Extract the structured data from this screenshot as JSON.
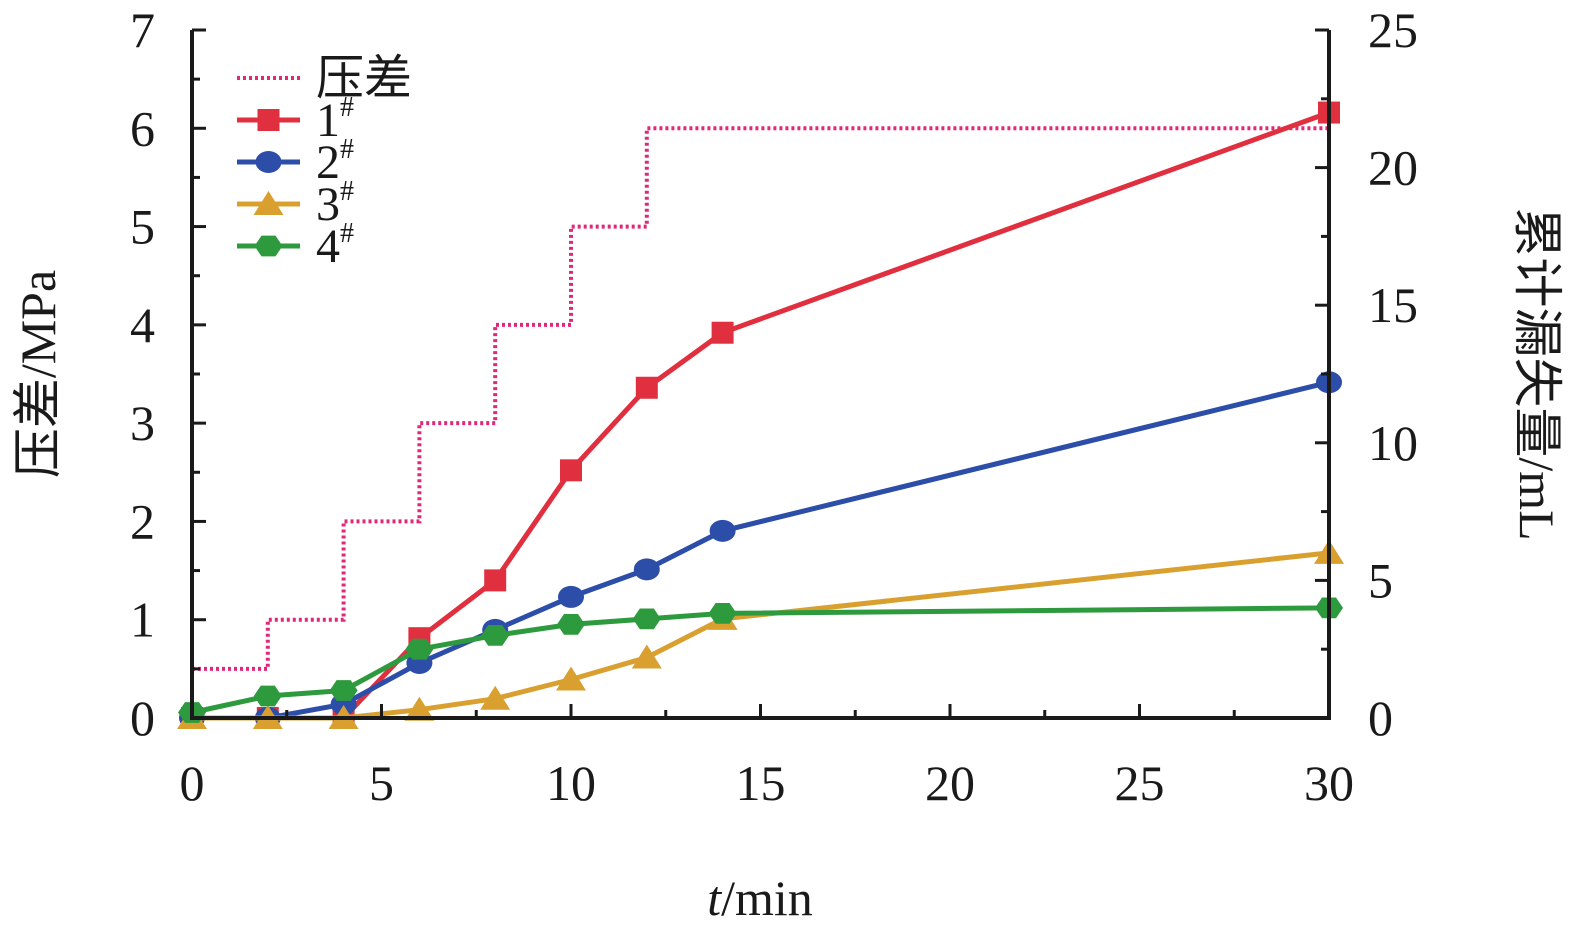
{
  "chart_data": {
    "type": "line",
    "xlabel": {
      "italic": "t",
      "rest": "/min"
    },
    "ylabel_left": "压差/MPa",
    "ylabel_right": "累计漏失量/mL",
    "xlim": [
      0,
      30
    ],
    "ylim_left": [
      0,
      7
    ],
    "ylim_right": [
      0,
      25
    ],
    "x_ticks": [
      {
        "value": 0,
        "label": "0"
      },
      {
        "value": 5,
        "label": "5"
      },
      {
        "value": 10,
        "label": "10"
      },
      {
        "value": 15,
        "label": "15"
      },
      {
        "value": 20,
        "label": "20"
      },
      {
        "value": 25,
        "label": "25"
      },
      {
        "value": 30,
        "label": "30"
      }
    ],
    "y_left_ticks": [
      "0",
      "1",
      "2",
      "3",
      "4",
      "5",
      "6",
      "7"
    ],
    "y_right_ticks": [
      "0",
      "5",
      "10",
      "15",
      "20",
      "25"
    ],
    "grid": false,
    "legend_position": "top-left",
    "pressure": {
      "name": "压差",
      "color": "#e0287a",
      "axis": "left",
      "style": "step-dotted",
      "x": [
        0,
        2,
        4,
        6,
        8,
        10,
        12,
        30
      ],
      "y": [
        0.5,
        1,
        2,
        3,
        4,
        5,
        6,
        6
      ]
    },
    "series": [
      {
        "name": "1",
        "sup": "#",
        "color": "#e03040",
        "marker": "square",
        "axis": "right",
        "x": [
          0,
          2,
          4,
          6,
          8,
          10,
          12,
          14,
          30
        ],
        "y": [
          0,
          0,
          0,
          2.9,
          5.0,
          9.0,
          12.0,
          14.0,
          22.0
        ]
      },
      {
        "name": "2",
        "sup": "#",
        "color": "#2c4ea8",
        "marker": "circle",
        "axis": "right",
        "x": [
          0,
          2,
          4,
          6,
          8,
          10,
          12,
          14,
          30
        ],
        "y": [
          0,
          0,
          0.5,
          2.0,
          3.2,
          4.4,
          5.4,
          6.8,
          12.2
        ]
      },
      {
        "name": "3",
        "sup": "#",
        "color": "#d9a030",
        "marker": "triangle",
        "axis": "right",
        "x": [
          0,
          2,
          4,
          6,
          8,
          10,
          12,
          14,
          30
        ],
        "y": [
          0,
          0,
          0,
          0.3,
          0.7,
          1.4,
          2.2,
          3.6,
          6.0
        ]
      },
      {
        "name": "4",
        "sup": "#",
        "color": "#2e9a3e",
        "marker": "hexagon",
        "axis": "right",
        "x": [
          0,
          2,
          4,
          6,
          8,
          10,
          12,
          14,
          30
        ],
        "y": [
          0.2,
          0.8,
          1.0,
          2.5,
          3.0,
          3.4,
          3.6,
          3.8,
          4.0
        ]
      }
    ]
  }
}
